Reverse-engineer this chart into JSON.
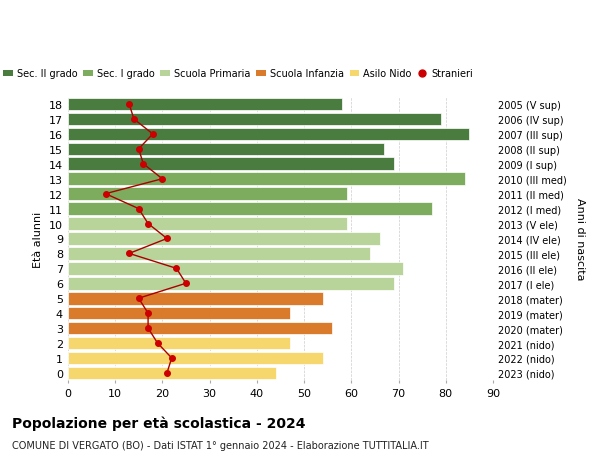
{
  "ages": [
    18,
    17,
    16,
    15,
    14,
    13,
    12,
    11,
    10,
    9,
    8,
    7,
    6,
    5,
    4,
    3,
    2,
    1,
    0
  ],
  "right_labels": [
    "2005 (V sup)",
    "2006 (IV sup)",
    "2007 (III sup)",
    "2008 (II sup)",
    "2009 (I sup)",
    "2010 (III med)",
    "2011 (II med)",
    "2012 (I med)",
    "2013 (V ele)",
    "2014 (IV ele)",
    "2015 (III ele)",
    "2016 (II ele)",
    "2017 (I ele)",
    "2018 (mater)",
    "2019 (mater)",
    "2020 (mater)",
    "2021 (nido)",
    "2022 (nido)",
    "2023 (nido)"
  ],
  "bar_values": [
    58,
    79,
    85,
    67,
    69,
    84,
    59,
    77,
    59,
    66,
    64,
    71,
    69,
    54,
    47,
    56,
    47,
    54,
    44
  ],
  "bar_colors": [
    "#4a7c3f",
    "#4a7c3f",
    "#4a7c3f",
    "#4a7c3f",
    "#4a7c3f",
    "#7dac5e",
    "#7dac5e",
    "#7dac5e",
    "#b8d49a",
    "#b8d49a",
    "#b8d49a",
    "#b8d49a",
    "#b8d49a",
    "#d97b2a",
    "#d97b2a",
    "#d97b2a",
    "#f5d76e",
    "#f5d76e",
    "#f5d76e"
  ],
  "stranieri_values": [
    13,
    14,
    18,
    15,
    16,
    20,
    8,
    15,
    17,
    21,
    13,
    23,
    25,
    15,
    17,
    17,
    19,
    22,
    21
  ],
  "legend_labels": [
    "Sec. II grado",
    "Sec. I grado",
    "Scuola Primaria",
    "Scuola Infanzia",
    "Asilo Nido",
    "Stranieri"
  ],
  "legend_colors": [
    "#4a7c3f",
    "#7dac5e",
    "#b8d49a",
    "#d97b2a",
    "#f5d76e",
    "#cc0000"
  ],
  "ylabel_left": "Età alunni",
  "ylabel_right": "Anni di nascita",
  "title": "Popolazione per età scolastica - 2024",
  "subtitle": "COMUNE DI VERGATO (BO) - Dati ISTAT 1° gennaio 2024 - Elaborazione TUTTITALIA.IT",
  "xlim": [
    0,
    90
  ],
  "xticks": [
    0,
    10,
    20,
    30,
    40,
    50,
    60,
    70,
    80,
    90
  ],
  "background_color": "#ffffff",
  "grid_color": "#cccccc"
}
